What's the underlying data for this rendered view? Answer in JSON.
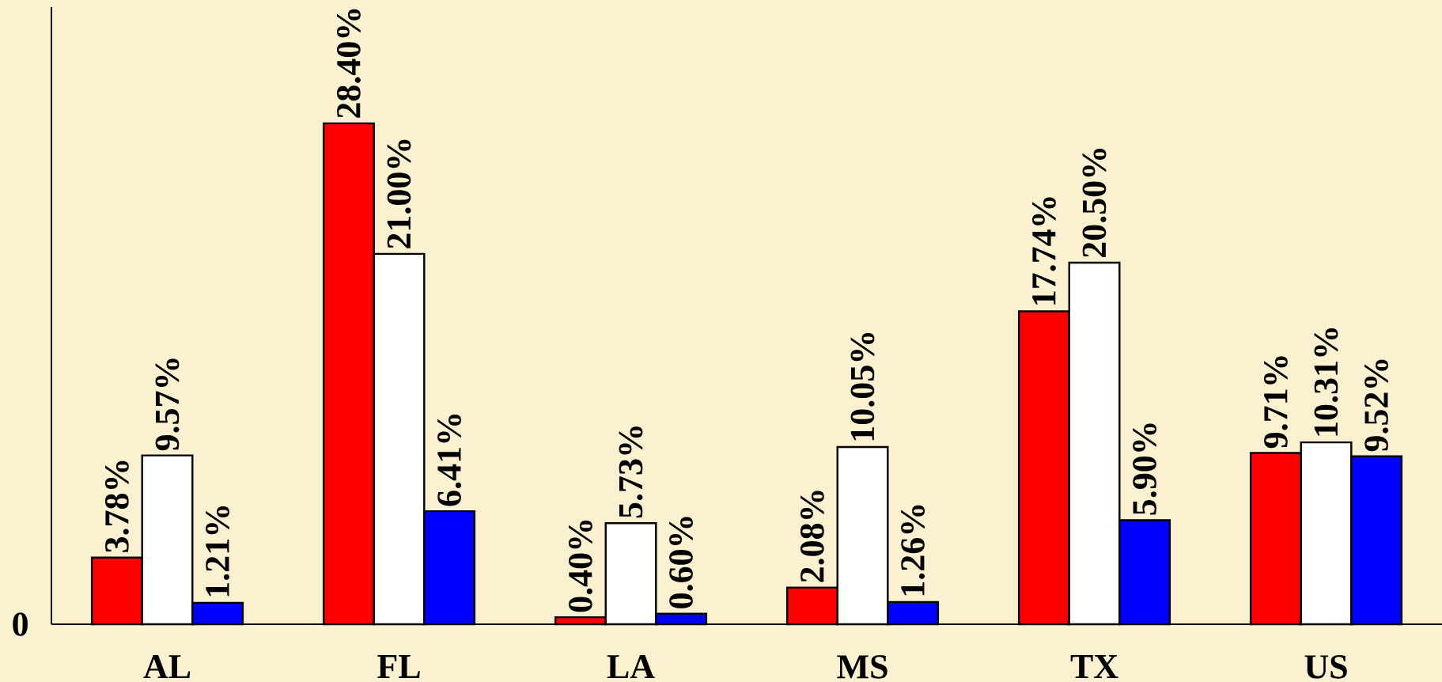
{
  "chart_data": {
    "type": "bar",
    "categories": [
      "AL",
      "FL",
      "LA",
      "MS",
      "TX",
      "US"
    ],
    "series": [
      {
        "color": "#ff0000",
        "values": [
          3.78,
          28.4,
          0.4,
          2.08,
          17.74,
          9.71
        ],
        "value_labels": [
          "3.78%",
          "28.40%",
          "0.40%",
          "2.08%",
          "17.74%",
          "9.71%"
        ]
      },
      {
        "color": "#ffffff",
        "values": [
          9.57,
          21.0,
          5.73,
          10.05,
          20.5,
          10.31
        ],
        "value_labels": [
          "9.57%",
          "21.00%",
          "5.73%",
          "10.05%",
          "20.50%",
          "10.31%"
        ]
      },
      {
        "color": "#0000ff",
        "values": [
          1.21,
          6.41,
          0.6,
          1.26,
          5.9,
          9.52
        ],
        "value_labels": [
          "1.21%",
          "6.41%",
          "0.60%",
          "1.26%",
          "5.90%",
          "9.52%"
        ]
      }
    ],
    "annotations": [
      "0"
    ]
  }
}
